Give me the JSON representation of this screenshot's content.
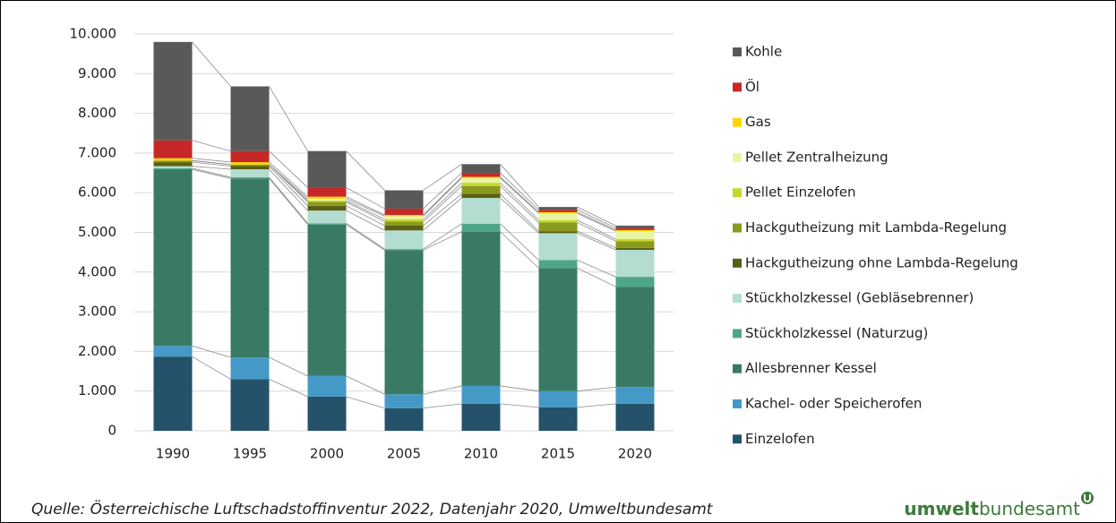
{
  "chart_data": {
    "type": "stacked_bar",
    "categories": [
      "1990",
      "1995",
      "2000",
      "2005",
      "2010",
      "2015",
      "2020"
    ],
    "series": [
      {
        "name": "Einzelofen",
        "color": "#24526a",
        "values": [
          1870,
          1300,
          860,
          570,
          680,
          590,
          680
        ]
      },
      {
        "name": "Kachel- oder Speicherofen",
        "color": "#4499c7",
        "values": [
          270,
          550,
          520,
          350,
          450,
          410,
          420
        ]
      },
      {
        "name": "Allesbrenner Kessel",
        "color": "#3a7a64",
        "values": [
          4450,
          4510,
          3820,
          3630,
          3890,
          3100,
          2530
        ]
      },
      {
        "name": "Stückholzkessel (Naturzug)",
        "color": "#4fa58a",
        "values": [
          30,
          30,
          30,
          30,
          200,
          200,
          250
        ]
      },
      {
        "name": "Stückholzkessel (Gebläsebrenner)",
        "color": "#b3ddd0",
        "values": [
          50,
          200,
          320,
          470,
          650,
          680,
          680
        ]
      },
      {
        "name": "Hackgutheizung ohne Lambda-Regelung",
        "color": "#5a5f14",
        "values": [
          100,
          80,
          120,
          120,
          100,
          50,
          50
        ]
      },
      {
        "name": "Hackgutheizung mit Lambda-Regelung",
        "color": "#8a9a1e",
        "values": [
          40,
          40,
          100,
          100,
          200,
          220,
          170
        ]
      },
      {
        "name": "Pellet Einzelofen",
        "color": "#c5d62e",
        "values": [
          0,
          0,
          30,
          60,
          80,
          60,
          50
        ]
      },
      {
        "name": "Pellet Zentralheizung",
        "color": "#e8f4a0",
        "values": [
          0,
          0,
          50,
          80,
          120,
          170,
          200
        ]
      },
      {
        "name": "Gas",
        "color": "#ffd500",
        "values": [
          60,
          60,
          50,
          30,
          30,
          30,
          30
        ]
      },
      {
        "name": "Öl",
        "color": "#c62828",
        "values": [
          450,
          280,
          230,
          160,
          100,
          60,
          50
        ]
      },
      {
        "name": "Kohle",
        "color": "#595959",
        "values": [
          2480,
          1630,
          920,
          460,
          220,
          70,
          60
        ]
      }
    ],
    "ylim": [
      0,
      10000
    ],
    "yticks": [
      0,
      {
        "value": 1000,
        "label": "1.000"
      },
      {
        "value": 2000,
        "label": "2.000"
      },
      {
        "value": 3000,
        "label": "3.000"
      },
      {
        "value": 4000,
        "label": "4.000"
      },
      {
        "value": 5000,
        "label": "5.000"
      },
      {
        "value": 6000,
        "label": "6.000"
      },
      {
        "value": 7000,
        "label": "7.000"
      },
      {
        "value": 8000,
        "label": "8.000"
      },
      {
        "value": 9000,
        "label": "9.000"
      },
      {
        "value": 10000,
        "label": "10.000"
      }
    ],
    "grid": true,
    "legend": "right",
    "source": "Quelle: Österreichische Luftschadstoffinventur 2022, Datenjahr 2020, Umweltbundesamt"
  },
  "logo": {
    "bold": "umwelt",
    "light": "bundesamt"
  }
}
